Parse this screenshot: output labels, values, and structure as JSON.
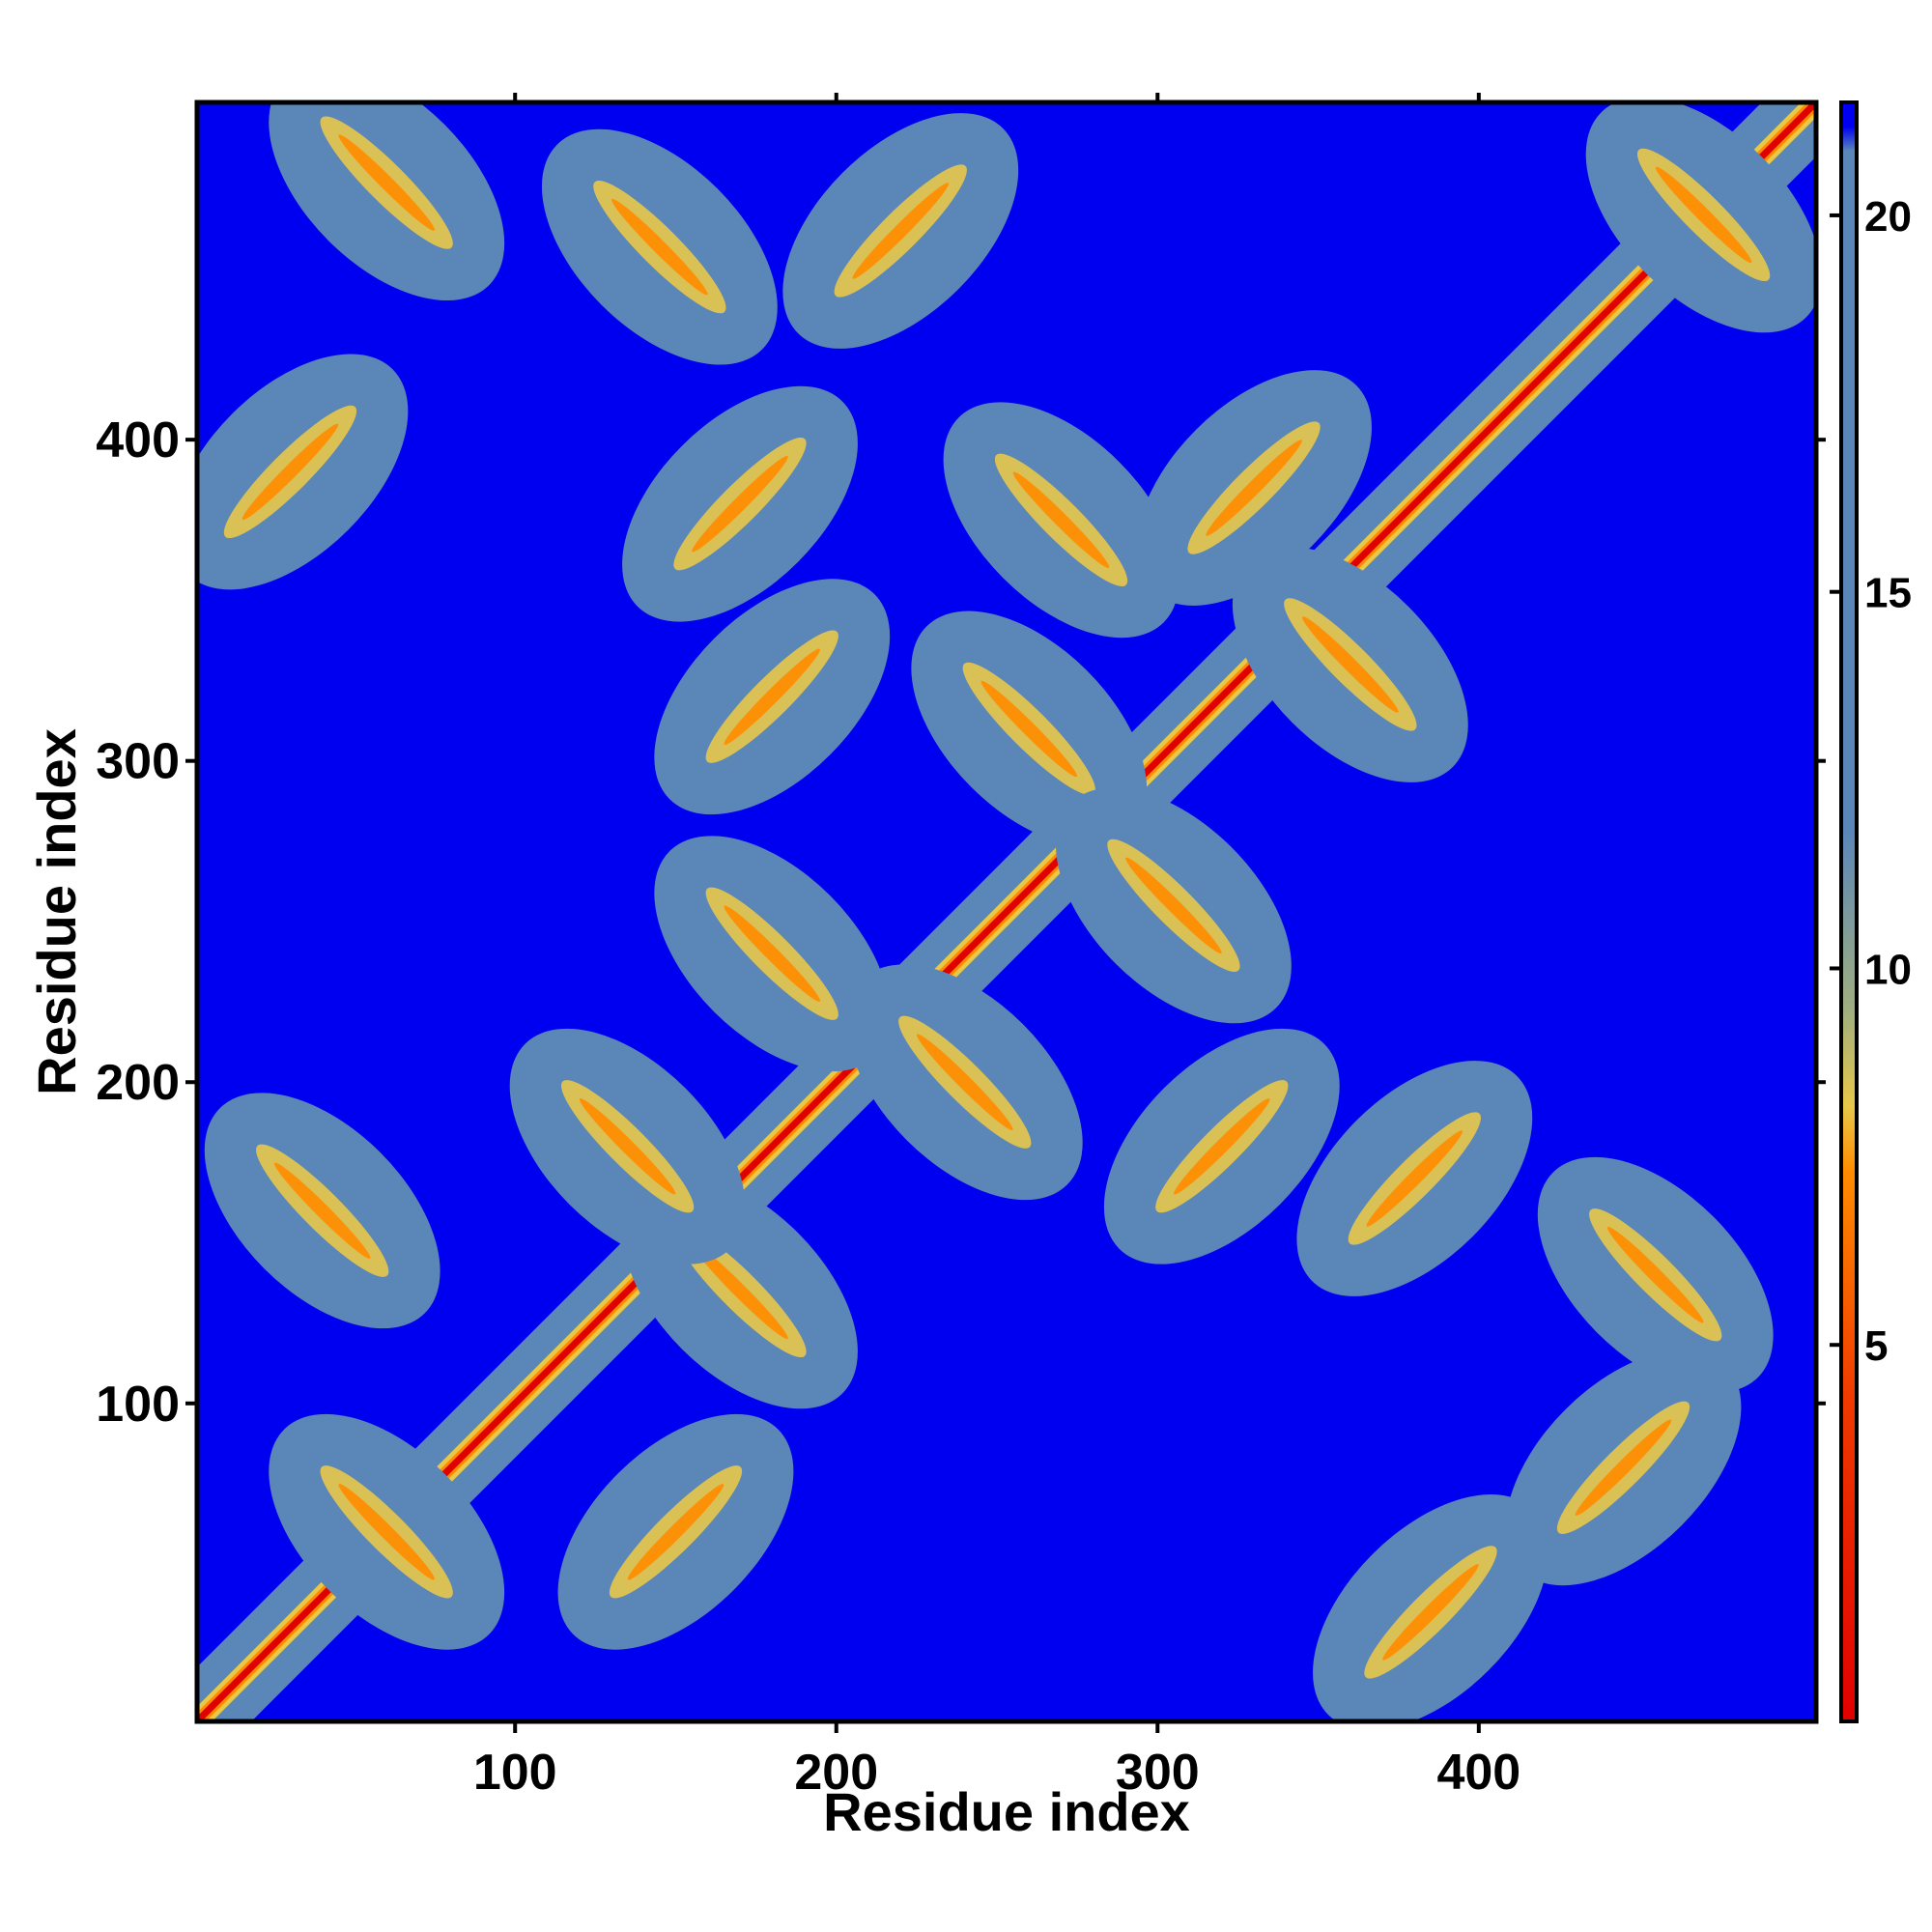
{
  "chart_data": {
    "type": "heatmap",
    "title": "",
    "xlabel": "Residue index",
    "ylabel": "Residue index",
    "xlim": [
      1,
      505
    ],
    "ylim": [
      1,
      505
    ],
    "x_ticks": [
      100,
      200,
      300,
      400
    ],
    "y_ticks": [
      100,
      200,
      300,
      400
    ],
    "value_description": "pairwise residue distance map, symmetric about the diagonal",
    "colorbar": {
      "range": [
        0,
        21.5
      ],
      "ticks": [
        5,
        10,
        15,
        20
      ],
      "colors": {
        "near": "#e00000",
        "mid_low": "#ff8c00",
        "mid": "#e8c84a",
        "mid_high": "#5b86b8",
        "far": "#0000f0"
      }
    },
    "structure": {
      "diagonal": "red band (~0-4) with yellow/orange halo along i = j",
      "contact_features": [
        {
          "x": 60,
          "y": 480,
          "kind": "antidiagonal"
        },
        {
          "x": 145,
          "y": 460,
          "kind": "antidiagonal"
        },
        {
          "x": 220,
          "y": 465,
          "kind": "diagonal"
        },
        {
          "x": 30,
          "y": 390,
          "kind": "diagonal"
        },
        {
          "x": 170,
          "y": 380,
          "kind": "diagonal"
        },
        {
          "x": 270,
          "y": 375,
          "kind": "antidiagonal"
        },
        {
          "x": 330,
          "y": 385,
          "kind": "diagonal"
        },
        {
          "x": 360,
          "y": 330,
          "kind": "antidiagonal"
        },
        {
          "x": 180,
          "y": 320,
          "kind": "diagonal"
        },
        {
          "x": 260,
          "y": 310,
          "kind": "antidiagonal"
        },
        {
          "x": 305,
          "y": 255,
          "kind": "antidiagonal"
        },
        {
          "x": 180,
          "y": 240,
          "kind": "antidiagonal"
        },
        {
          "x": 240,
          "y": 200,
          "kind": "antidiagonal"
        },
        {
          "x": 320,
          "y": 180,
          "kind": "diagonal"
        },
        {
          "x": 380,
          "y": 170,
          "kind": "diagonal"
        },
        {
          "x": 170,
          "y": 135,
          "kind": "antidiagonal"
        },
        {
          "x": 135,
          "y": 180,
          "kind": "antidiagonal"
        },
        {
          "x": 455,
          "y": 140,
          "kind": "antidiagonal"
        },
        {
          "x": 445,
          "y": 80,
          "kind": "diagonal"
        },
        {
          "x": 385,
          "y": 35,
          "kind": "diagonal"
        },
        {
          "x": 150,
          "y": 60,
          "kind": "diagonal"
        },
        {
          "x": 40,
          "y": 160,
          "kind": "antidiagonal"
        },
        {
          "x": 60,
          "y": 60,
          "kind": "antidiagonal"
        },
        {
          "x": 470,
          "y": 470,
          "kind": "antidiagonal"
        }
      ]
    }
  }
}
